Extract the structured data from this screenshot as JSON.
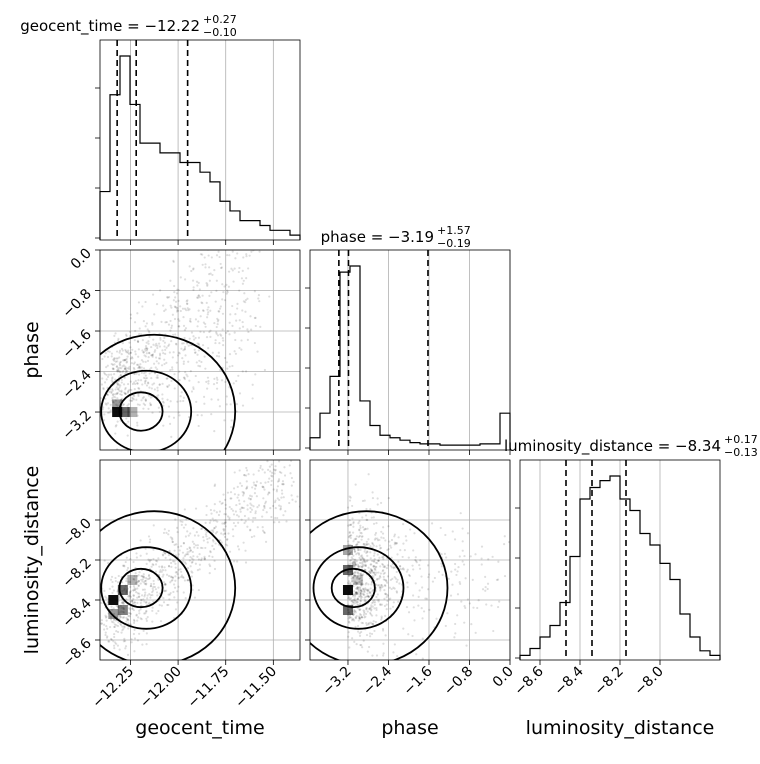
{
  "chart_data": {
    "type": "corner",
    "parameters": [
      "geocent_time",
      "phase",
      "luminosity_distance"
    ],
    "diagonal_titles": [
      {
        "param": "geocent_time",
        "prefix": "geocent_time = −12.22",
        "sup": "+0.27",
        "sub": "−0.10"
      },
      {
        "param": "phase",
        "prefix": "phase = −3.19",
        "sup": "+1.57",
        "sub": "−0.19"
      },
      {
        "param": "luminosity_distance",
        "prefix": "luminosity_distance = −8.34",
        "sup": "+0.17",
        "sub": "−0.13"
      }
    ],
    "axis_labels": {
      "x": [
        "geocent_time",
        "phase",
        "luminosity_distance"
      ],
      "y": [
        "phase",
        "luminosity_distance"
      ]
    },
    "ranges": {
      "geocent_time": [
        -12.41,
        -11.36
      ],
      "phase": [
        -3.95,
        0.0
      ],
      "luminosity_distance": [
        -8.7,
        -7.7
      ]
    },
    "ticks": {
      "geocent_time": [
        -12.25,
        -12.0,
        -11.75,
        -11.5
      ],
      "phase": [
        -3.2,
        -2.4,
        -1.6,
        -0.8,
        0.0
      ],
      "luminosity_distance": [
        -8.6,
        -8.4,
        -8.2,
        -8.0
      ]
    },
    "tick_labels": {
      "geocent_time": [
        "−12.25",
        "−12.00",
        "−11.75",
        "−11.50"
      ],
      "phase": [
        "−3.2",
        "−2.4",
        "−1.6",
        "−0.8",
        "0.0"
      ],
      "luminosity_distance": [
        "−8.6",
        "−8.4",
        "−8.2",
        "−8.0"
      ]
    },
    "quantiles": {
      "geocent_time": [
        -12.32,
        -12.22,
        -11.95
      ],
      "phase": [
        -3.38,
        -3.19,
        -1.62
      ],
      "luminosity_distance": [
        -8.47,
        -8.34,
        -8.17
      ]
    },
    "histograms": {
      "geocent_time": {
        "range": [
          -12.41,
          -11.36
        ],
        "counts": [
          0.5,
          1.5,
          1.9,
          1.4,
          1.0,
          1.0,
          0.9,
          0.9,
          0.8,
          0.8,
          0.7,
          0.6,
          0.4,
          0.3,
          0.2,
          0.2,
          0.15,
          0.1,
          0.1,
          0.05
        ]
      },
      "phase": {
        "range": [
          -3.95,
          0.0
        ],
        "counts": [
          0.1,
          0.3,
          0.6,
          1.45,
          1.5,
          0.4,
          0.2,
          0.12,
          0.1,
          0.08,
          0.06,
          0.05,
          0.05,
          0.04,
          0.04,
          0.04,
          0.04,
          0.05,
          0.05,
          0.3
        ]
      },
      "luminosity_distance": {
        "range": [
          -8.7,
          -7.7
        ],
        "counts": [
          0.02,
          0.05,
          0.1,
          0.15,
          0.25,
          0.45,
          0.7,
          0.75,
          0.78,
          0.8,
          0.7,
          0.65,
          0.55,
          0.5,
          0.42,
          0.35,
          0.2,
          0.1,
          0.04,
          0.02
        ]
      }
    }
  }
}
